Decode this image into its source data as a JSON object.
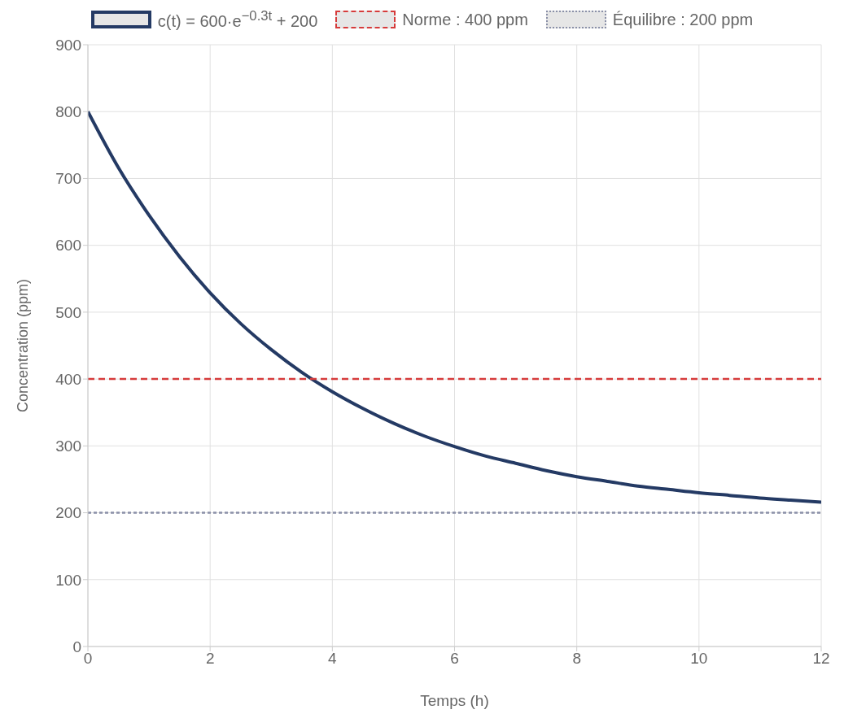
{
  "chart_data": {
    "type": "line",
    "xlabel": "Temps (h)",
    "ylabel": "Concentration (ppm)",
    "xlim": [
      0,
      12
    ],
    "xticks": [
      0,
      2,
      4,
      6,
      8,
      10,
      12
    ],
    "ylim": [
      0,
      900
    ],
    "yticks": [
      0,
      100,
      200,
      300,
      400,
      500,
      600,
      700,
      800,
      900
    ],
    "grid": true,
    "legend": "top",
    "marker": "none",
    "series": [
      {
        "name": "c(t) = 600·e$^{−0.3t}$ + 200",
        "color": "#243a64",
        "line_style": "solid",
        "x": [
          0,
          0.5,
          1,
          1.5,
          2,
          2.5,
          3,
          3.5,
          4,
          4.5,
          5,
          5.5,
          6,
          6.5,
          7,
          7.5,
          8,
          8.5,
          9,
          9.5,
          10,
          10.5,
          11,
          11.5,
          12
        ],
        "values": [
          800,
          716,
          645,
          583,
          529,
          483,
          444,
          410,
          381,
          356,
          334,
          315,
          299,
          285,
          274,
          263,
          254,
          247,
          240,
          235,
          230,
          226,
          222,
          219,
          216
        ]
      },
      {
        "name": "Norme : 400 ppm",
        "color": "#d63b3b",
        "line_style": "dashed",
        "x": [
          0,
          12
        ],
        "values": [
          400,
          400
        ]
      },
      {
        "name": "Équilibre : 200 ppm",
        "color": "#8a90a8",
        "line_style": "dotted",
        "x": [
          0,
          12
        ],
        "values": [
          200,
          200
        ]
      }
    ]
  }
}
